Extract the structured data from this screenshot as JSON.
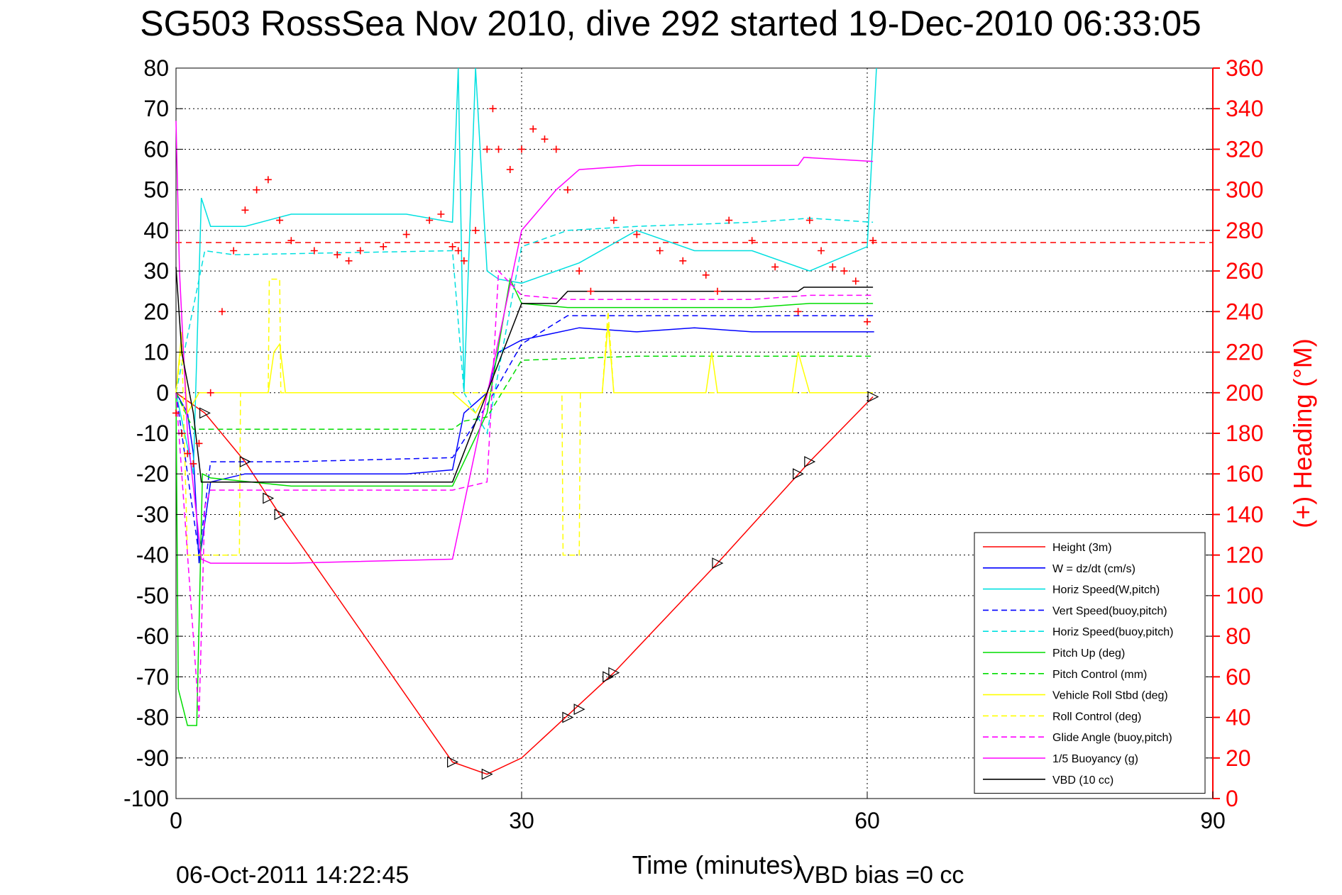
{
  "chart_data": {
    "type": "line",
    "title": "SG503 RossSea Nov 2010, dive 292 started 19-Dec-2010 06:33:05",
    "xlabel": "Time (minutes)",
    "ylabel_right": "(+) Heading (°M)",
    "footer_left": "06-Oct-2011 14:22:45",
    "footer_right": "VBD bias =0 cc",
    "xlim": [
      0,
      90
    ],
    "ylim_left": [
      -100,
      80
    ],
    "ylim_right": [
      0,
      360
    ],
    "xticks": [
      "0",
      "30",
      "60",
      "90"
    ],
    "yticks_left": [
      "80",
      "70",
      "60",
      "50",
      "40",
      "30",
      "20",
      "10",
      "0",
      "-10",
      "-20",
      "-30",
      "-40",
      "-50",
      "-60",
      "-70",
      "-80",
      "-90",
      "-100"
    ],
    "yticks_right": [
      "360",
      "340",
      "320",
      "300",
      "280",
      "260",
      "240",
      "220",
      "200",
      "180",
      "160",
      "140",
      "120",
      "100",
      "80",
      "60",
      "40",
      "20",
      "0"
    ],
    "grid": true,
    "legend_position": "bottom-right",
    "series": [
      {
        "name": "Height (3m)",
        "color": "#ff0000",
        "style": "solid",
        "x": [
          0,
          2.5,
          6,
          9,
          24,
          27,
          30,
          38,
          47,
          55,
          60.5
        ],
        "y": [
          0,
          -5,
          -17,
          -30,
          -91,
          -94,
          -90,
          -69,
          -42,
          -17,
          -1
        ]
      },
      {
        "name": "W = dz/dt (cm/s)",
        "color": "#0000ff",
        "style": "solid",
        "x": [
          0,
          1,
          1.5,
          2,
          3,
          6,
          10,
          15,
          20,
          24,
          25,
          27,
          28,
          30,
          35,
          40,
          45,
          50,
          55,
          60,
          60.6
        ],
        "y": [
          0,
          -5,
          -15,
          -42,
          -22,
          -20,
          -20,
          -20,
          -20,
          -19,
          -5,
          0,
          10,
          13,
          16,
          15,
          16,
          15,
          15,
          15,
          15
        ]
      },
      {
        "name": "Horiz Speed(W,pitch)",
        "color": "#00e0e0",
        "style": "solid",
        "x": [
          0,
          1.5,
          2.2,
          3,
          6,
          10,
          15,
          20,
          24,
          24.5,
          25,
          26,
          27,
          28,
          30,
          35,
          40,
          45,
          50,
          55,
          60,
          60.8
        ],
        "y": [
          0,
          -20,
          48,
          41,
          41,
          44,
          44,
          44,
          42,
          80,
          0,
          80,
          30,
          28,
          27,
          32,
          40,
          35,
          35,
          30,
          36,
          80
        ]
      },
      {
        "name": "Vert Speed(buoy,pitch)",
        "color": "#0000ff",
        "style": "dashed",
        "x": [
          0,
          2,
          3,
          10,
          24,
          27,
          30,
          34,
          40,
          50,
          55,
          60.5
        ],
        "y": [
          0,
          -40,
          -17,
          -17,
          -16,
          -3,
          12,
          19,
          19,
          19,
          19,
          19
        ]
      },
      {
        "name": "Horiz Speed(buoy,pitch)",
        "color": "#00e0e0",
        "style": "dashed",
        "x": [
          0,
          2.5,
          5,
          24,
          25,
          27,
          30,
          34,
          40,
          50,
          55,
          60.5
        ],
        "y": [
          0,
          35,
          34,
          35,
          0,
          -10,
          36,
          40,
          41,
          42,
          43,
          42
        ]
      },
      {
        "name": "Pitch Up (deg)",
        "color": "#00dd00",
        "style": "solid",
        "x": [
          0,
          0.2,
          1,
          1.8,
          2.3,
          3,
          10,
          24,
          27,
          29,
          30,
          34,
          40,
          50,
          55,
          60.5
        ],
        "y": [
          0,
          -73,
          -82,
          -82,
          -20,
          -21,
          -23,
          -23,
          -5,
          28,
          22,
          21,
          21,
          21,
          22,
          22
        ]
      },
      {
        "name": "Pitch Control (mm)",
        "color": "#00dd00",
        "style": "dashed",
        "x": [
          0,
          1.5,
          2.5,
          24,
          25,
          27,
          30,
          40,
          50,
          60.5
        ],
        "y": [
          0,
          -9,
          -9,
          -9,
          -7,
          -6,
          8,
          9,
          9,
          9
        ]
      },
      {
        "name": "Vehicle Roll Stbd (deg)",
        "color": "#ffff00",
        "style": "solid",
        "x": [
          0,
          0.5,
          1,
          2,
          5,
          8,
          8.5,
          9,
          9.5,
          10,
          24,
          26,
          27,
          28,
          30,
          35,
          37,
          37.5,
          38,
          46,
          46.5,
          47,
          53.5,
          54,
          55,
          60.5
        ],
        "y": [
          0,
          15,
          -5,
          0,
          0,
          0,
          10,
          12,
          0,
          0,
          0,
          -5,
          0,
          0,
          0,
          0,
          0,
          17,
          0,
          0,
          10,
          0,
          0,
          10,
          0,
          0
        ]
      },
      {
        "name": "Roll Control (deg)",
        "color": "#ffff00",
        "style": "dashed",
        "x": [
          0,
          0.5,
          1,
          2,
          5.5,
          5.6,
          8,
          8.1,
          9,
          9.1,
          24,
          30,
          33.5,
          33.6,
          35,
          35.1,
          36,
          37,
          37.5,
          38,
          60.5
        ],
        "y": [
          0,
          12,
          -40,
          -40,
          -40,
          0,
          0,
          28,
          28,
          0,
          0,
          0,
          0,
          -40,
          -40,
          0,
          0,
          0,
          20,
          0,
          0
        ]
      },
      {
        "name": "Glide Angle (buoy,pitch)",
        "color": "#ff00ff",
        "style": "dashed",
        "x": [
          0,
          2,
          2.5,
          3,
          10,
          24,
          27,
          28,
          30,
          34,
          40,
          50,
          55,
          60.5
        ],
        "y": [
          0,
          -80,
          -28,
          -24,
          -24,
          -24,
          -22,
          30,
          24,
          23,
          23,
          23,
          24,
          24
        ]
      },
      {
        "name": "1/5 Buoyancy (g)",
        "color": "#ff00ff",
        "style": "solid",
        "x": [
          0,
          0.3,
          1,
          2.2,
          3,
          10,
          24,
          30,
          33,
          35,
          40,
          45,
          50,
          54,
          54.5,
          60.5
        ],
        "y": [
          67,
          30,
          -10,
          -41,
          -42,
          -42,
          -41,
          40,
          50,
          55,
          56,
          56,
          56,
          56,
          58,
          57
        ]
      },
      {
        "name": "VBD (10 cc)",
        "color": "#000000",
        "style": "solid",
        "x": [
          0,
          0.5,
          1.5,
          2.2,
          3,
          10,
          24,
          30,
          33,
          34,
          35,
          54,
          54.5,
          60.5
        ],
        "y": [
          31,
          10,
          -5,
          -22,
          -22,
          -22,
          -22,
          22,
          22,
          25,
          25,
          25,
          26,
          26
        ]
      },
      {
        "name": "(+) Heading (°M)",
        "color": "#ff0000",
        "style": "markers-plus",
        "axis": "right",
        "x": [
          0,
          0.5,
          1,
          1.5,
          2,
          3,
          4,
          5,
          6,
          7,
          8,
          9,
          10,
          12,
          14,
          15,
          16,
          18,
          20,
          22,
          23,
          24,
          24.5,
          25,
          26,
          27,
          27.5,
          28,
          29,
          30,
          31,
          32,
          33,
          34,
          35,
          36,
          38,
          40,
          42,
          44,
          46,
          47,
          48,
          50,
          52,
          54,
          55,
          56,
          57,
          58,
          59,
          60,
          60.5
        ],
        "y": [
          190,
          180,
          170,
          165,
          175,
          200,
          240,
          270,
          290,
          300,
          305,
          285,
          275,
          270,
          268,
          265,
          270,
          272,
          278,
          285,
          288,
          272,
          270,
          265,
          280,
          320,
          340,
          320,
          310,
          320,
          330,
          325,
          320,
          300,
          260,
          250,
          285,
          278,
          270,
          265,
          258,
          250,
          285,
          275,
          262,
          240,
          285,
          270,
          262,
          260,
          255,
          235,
          275
        ]
      }
    ]
  }
}
